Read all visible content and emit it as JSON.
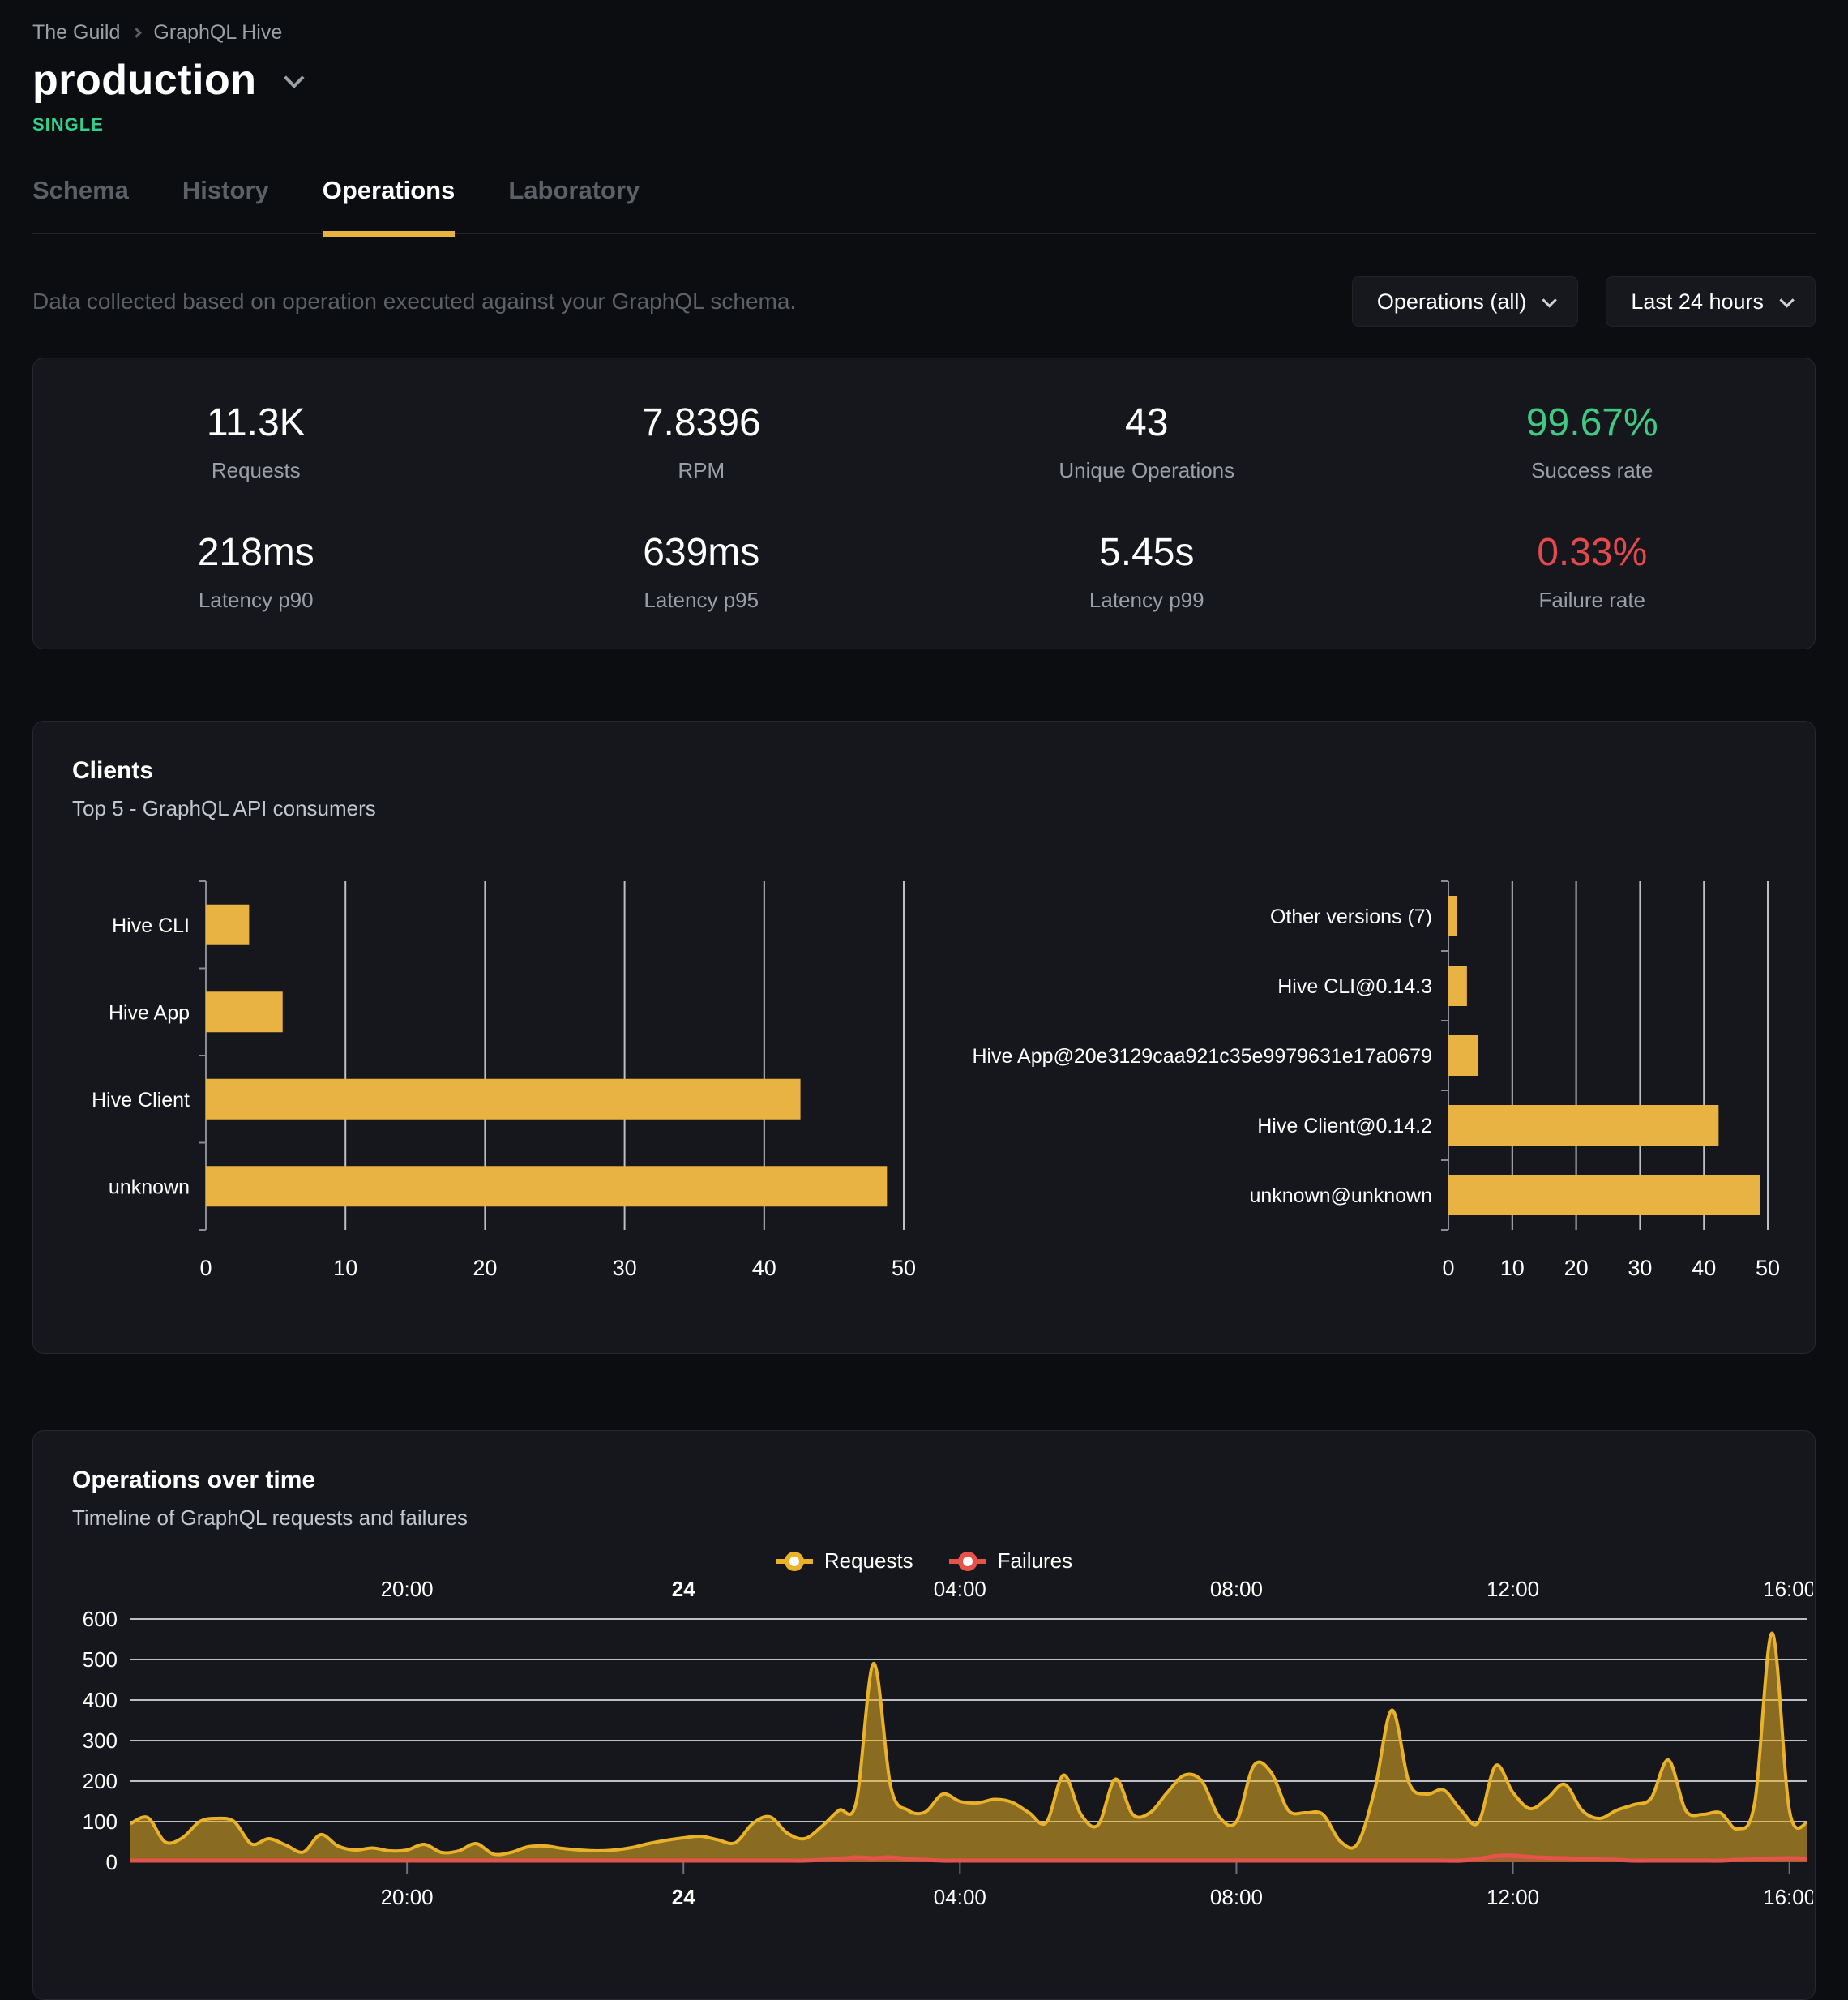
{
  "header": {
    "breadcrumb": [
      "The Guild",
      "GraphQL Hive"
    ],
    "title": "production",
    "badge": "SINGLE"
  },
  "tabs": {
    "items": [
      {
        "label": "Schema",
        "active": false
      },
      {
        "label": "History",
        "active": false
      },
      {
        "label": "Operations",
        "active": true
      },
      {
        "label": "Laboratory",
        "active": false
      }
    ]
  },
  "controls": {
    "description": "Data collected based on operation executed against your GraphQL schema.",
    "operations_filter": "Operations (all)",
    "time_range": "Last 24 hours"
  },
  "stats": {
    "items": [
      {
        "value": "11.3K",
        "label": "Requests"
      },
      {
        "value": "7.8396",
        "label": "RPM"
      },
      {
        "value": "43",
        "label": "Unique Operations"
      },
      {
        "value": "99.67%",
        "label": "Success rate",
        "color": "#41c983"
      },
      {
        "value": "218ms",
        "label": "Latency p90"
      },
      {
        "value": "639ms",
        "label": "Latency p95"
      },
      {
        "value": "5.45s",
        "label": "Latency p99"
      },
      {
        "value": "0.33%",
        "label": "Failure rate",
        "color": "#e5484d"
      }
    ]
  },
  "clients": {
    "title": "Clients",
    "subtitle": "Top 5 - GraphQL API consumers"
  },
  "operations_over_time": {
    "title": "Operations over time",
    "subtitle": "Timeline of GraphQL requests and failures",
    "legend": [
      {
        "label": "Requests",
        "color": "#e9b228"
      },
      {
        "label": "Failures",
        "color": "#e5534b"
      }
    ]
  },
  "colors": {
    "accent_yellow": "#e8b342",
    "success_green": "#41c983",
    "failure_red": "#e5484d",
    "badge_green": "#31d08c",
    "gridline": "#cfd3d8"
  },
  "chart_data": [
    {
      "id": "clients_by_name",
      "type": "bar",
      "orientation": "horizontal",
      "categories": [
        "Hive CLI",
        "Hive App",
        "Hive Client",
        "unknown"
      ],
      "values": [
        3.1,
        5.5,
        42.6,
        48.8
      ],
      "xlim": [
        0,
        50
      ],
      "xticks": [
        0,
        10,
        20,
        30,
        40,
        50
      ],
      "bar_color": "#e8b342",
      "grid": true
    },
    {
      "id": "clients_by_version",
      "type": "bar",
      "orientation": "horizontal",
      "categories": [
        "Other versions (7)",
        "Hive CLI@0.14.3",
        "Hive App@20e3129caa921c35e9979631e17a0679",
        "Hive Client@0.14.2",
        "unknown@unknown"
      ],
      "values": [
        1.4,
        2.9,
        4.7,
        42.3,
        48.8
      ],
      "xlim": [
        0,
        50
      ],
      "xticks": [
        0,
        10,
        20,
        30,
        40,
        50
      ],
      "bar_color": "#e8b342",
      "grid": true
    },
    {
      "id": "operations_over_time",
      "type": "area",
      "x_start_label": "16:00 (24h ago)",
      "x_step_hours": 0.25,
      "x_total_hours": 24.25,
      "x_ticks": [
        {
          "t": 4,
          "label": "20:00",
          "bold": false
        },
        {
          "t": 8,
          "label": "24",
          "bold": true
        },
        {
          "t": 12,
          "label": "04:00",
          "bold": false
        },
        {
          "t": 16,
          "label": "08:00",
          "bold": false
        },
        {
          "t": 20,
          "label": "12:00",
          "bold": false
        },
        {
          "t": 24,
          "label": "16:00",
          "bold": false
        }
      ],
      "ylim": [
        0,
        600
      ],
      "yticks": [
        0,
        100,
        200,
        300,
        400,
        500,
        600
      ],
      "grid": true,
      "legend_position": "top-center",
      "series": [
        {
          "name": "Requests",
          "color": "#e9b228",
          "values": [
            95,
            110,
            50,
            60,
            100,
            108,
            100,
            45,
            58,
            42,
            25,
            68,
            40,
            30,
            35,
            28,
            30,
            44,
            24,
            28,
            46,
            20,
            24,
            38,
            40,
            34,
            30,
            28,
            30,
            36,
            46,
            54,
            60,
            64,
            55,
            48,
            95,
            112,
            72,
            58,
            88,
            128,
            148,
            490,
            185,
            128,
            124,
            168,
            150,
            146,
            155,
            148,
            122,
            98,
            215,
            118,
            92,
            205,
            118,
            122,
            172,
            215,
            200,
            112,
            100,
            238,
            222,
            128,
            122,
            118,
            52,
            45,
            178,
            375,
            195,
            168,
            178,
            128,
            98,
            238,
            172,
            132,
            158,
            192,
            128,
            108,
            128,
            142,
            158,
            252,
            128,
            118,
            122,
            82,
            148,
            565,
            128,
            95
          ]
        },
        {
          "name": "Failures",
          "color": "#e5534b",
          "values": [
            4,
            4,
            4,
            4,
            4,
            4,
            4,
            4,
            4,
            4,
            4,
            4,
            4,
            4,
            4,
            4,
            4,
            4,
            4,
            4,
            4,
            4,
            4,
            4,
            4,
            4,
            4,
            4,
            4,
            4,
            4,
            4,
            4,
            4,
            4,
            4,
            4,
            4,
            4,
            4,
            6,
            8,
            12,
            10,
            12,
            8,
            6,
            4,
            4,
            4,
            4,
            4,
            4,
            4,
            4,
            4,
            4,
            4,
            4,
            4,
            4,
            4,
            4,
            4,
            4,
            4,
            4,
            4,
            4,
            4,
            4,
            4,
            4,
            4,
            4,
            4,
            4,
            4,
            8,
            15,
            16,
            13,
            11,
            10,
            8,
            7,
            6,
            4,
            4,
            4,
            4,
            4,
            4,
            6,
            7,
            9,
            10,
            9
          ]
        }
      ]
    }
  ]
}
